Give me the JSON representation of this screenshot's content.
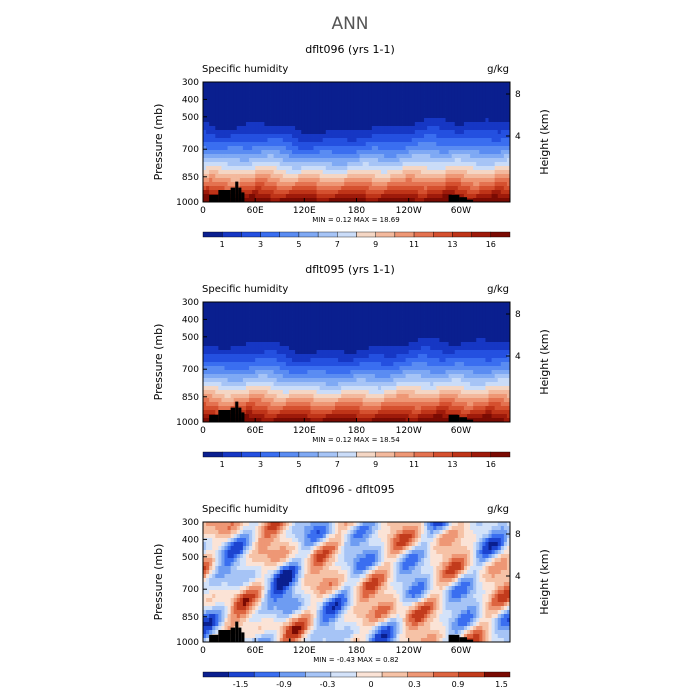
{
  "page": {
    "title": "ANN"
  },
  "chart_data": [
    {
      "type": "heatmap",
      "title": "dflt096 (yrs 1-1)",
      "variable_label": "Specific humidity",
      "units": "g/kg",
      "ylabel": "Pressure (mb)",
      "ylabel_right": "Height (km)",
      "y_ticks": [
        "300",
        "400",
        "500",
        "700",
        "850",
        "1000"
      ],
      "y_right_ticks": [
        "8",
        "4"
      ],
      "x_ticks": [
        "0",
        "60E",
        "120E",
        "180",
        "120W",
        "60W"
      ],
      "stats": {
        "min_label": "MIN =",
        "min": "0.12",
        "max_label": "MAX =",
        "max": "18.69"
      },
      "colorbar_labels": [
        "1",
        "3",
        "5",
        "7",
        "9",
        "11",
        "13",
        "16"
      ],
      "palette": [
        "#0a1f8f",
        "#1637c4",
        "#2450e0",
        "#3a6ef0",
        "#5a8cf2",
        "#7fa9f4",
        "#a6c4f6",
        "#cadcf8",
        "#f4d6c4",
        "#f3b99d",
        "#ee9775",
        "#e47250",
        "#d5502f",
        "#bf3418",
        "#9e1a0a",
        "#7a0b03"
      ],
      "field": "humidity"
    },
    {
      "type": "heatmap",
      "title": "dflt095 (yrs 1-1)",
      "variable_label": "Specific humidity",
      "units": "g/kg",
      "ylabel": "Pressure (mb)",
      "ylabel_right": "Height (km)",
      "y_ticks": [
        "300",
        "400",
        "500",
        "700",
        "850",
        "1000"
      ],
      "y_right_ticks": [
        "8",
        "4"
      ],
      "x_ticks": [
        "0",
        "60E",
        "120E",
        "180",
        "120W",
        "60W"
      ],
      "stats": {
        "min_label": "MIN =",
        "min": "0.12",
        "max_label": "MAX =",
        "max": "18.54"
      },
      "colorbar_labels": [
        "1",
        "3",
        "5",
        "7",
        "9",
        "11",
        "13",
        "16"
      ],
      "palette": [
        "#0a1f8f",
        "#1637c4",
        "#2450e0",
        "#3a6ef0",
        "#5a8cf2",
        "#7fa9f4",
        "#a6c4f6",
        "#cadcf8",
        "#f4d6c4",
        "#f3b99d",
        "#ee9775",
        "#e47250",
        "#d5502f",
        "#bf3418",
        "#9e1a0a",
        "#7a0b03"
      ],
      "field": "humidity"
    },
    {
      "type": "heatmap",
      "title": "dflt096 - dflt095",
      "variable_label": "Specific humidity",
      "units": "g/kg",
      "ylabel": "Pressure (mb)",
      "ylabel_right": "Height (km)",
      "y_ticks": [
        "300",
        "400",
        "500",
        "700",
        "850",
        "1000"
      ],
      "y_right_ticks": [
        "8",
        "4"
      ],
      "x_ticks": [
        "0",
        "60E",
        "120E",
        "180",
        "120W",
        "60W"
      ],
      "stats": {
        "min_label": "MIN =",
        "min": "-0.43",
        "max_label": "MAX =",
        "max": "0.82"
      },
      "colorbar_labels": [
        "-1.5",
        "-0.9",
        "-0.3",
        "0",
        "0.3",
        "0.9",
        "1.5"
      ],
      "palette": [
        "#0a1f8f",
        "#1c44d0",
        "#3a6ef0",
        "#6e9cf2",
        "#a6c4f6",
        "#d3e2f9",
        "#fbe3d6",
        "#f6c2a6",
        "#ee9775",
        "#dd6440",
        "#c23b1c",
        "#7a0b03"
      ],
      "field": "difference"
    }
  ],
  "colors": {
    "land": "#000000",
    "frame": "#000000"
  }
}
